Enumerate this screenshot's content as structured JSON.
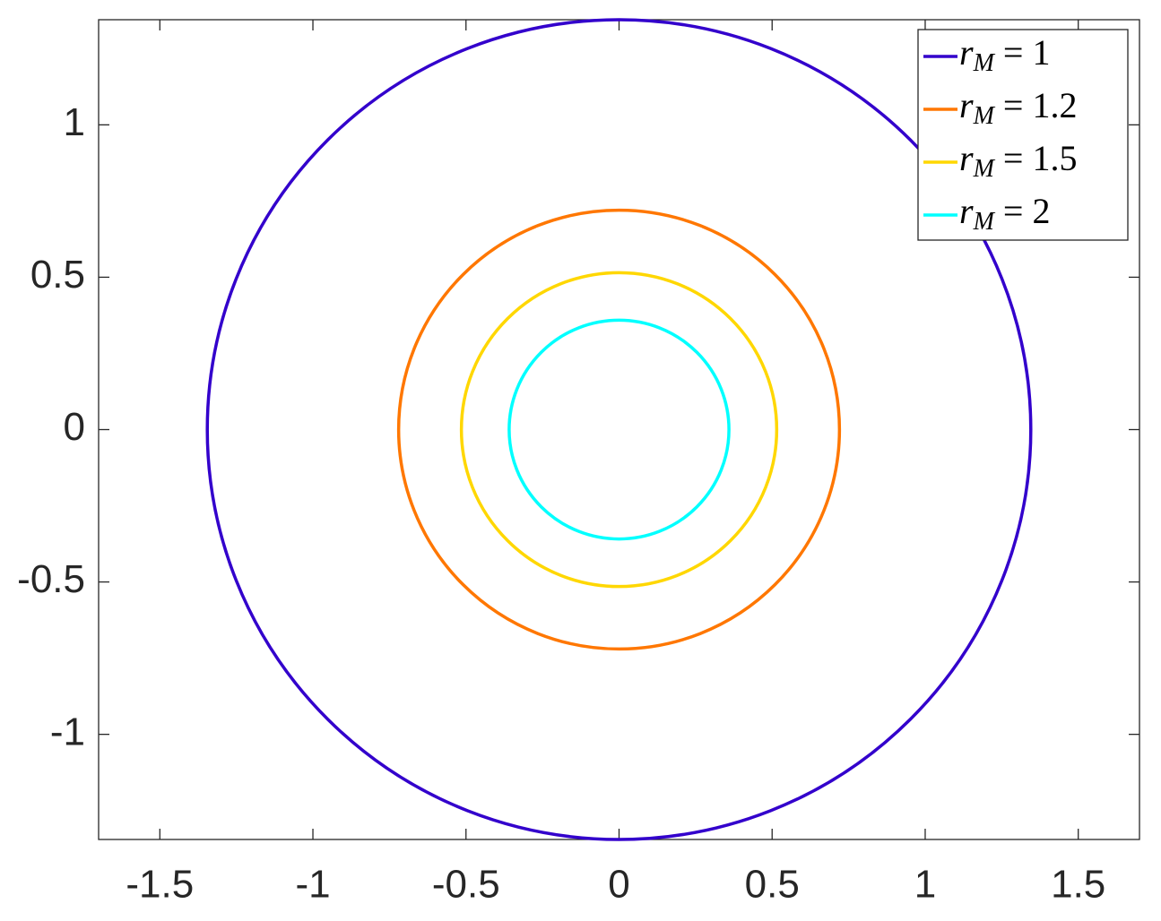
{
  "chart_data": {
    "type": "circle",
    "series": [
      {
        "name": "rM = 1",
        "color": "#3300cc",
        "radius": 1.345
      },
      {
        "name": "rM = 1.2",
        "color": "#ff7700",
        "radius": 0.72
      },
      {
        "name": "rM = 1.5",
        "color": "#ffd700",
        "radius": 0.515
      },
      {
        "name": "rM = 2",
        "color": "#00ffff",
        "radius": 0.359
      }
    ],
    "xlim": [
      -1.7,
      1.7
    ],
    "ylim": [
      -1.345,
      1.345
    ],
    "xticks": [
      -1.5,
      -1,
      -0.5,
      0,
      0.5,
      1,
      1.5
    ],
    "yticks": [
      -1,
      -0.5,
      0,
      0.5,
      1
    ],
    "grid": false,
    "legend": "northeast"
  }
}
